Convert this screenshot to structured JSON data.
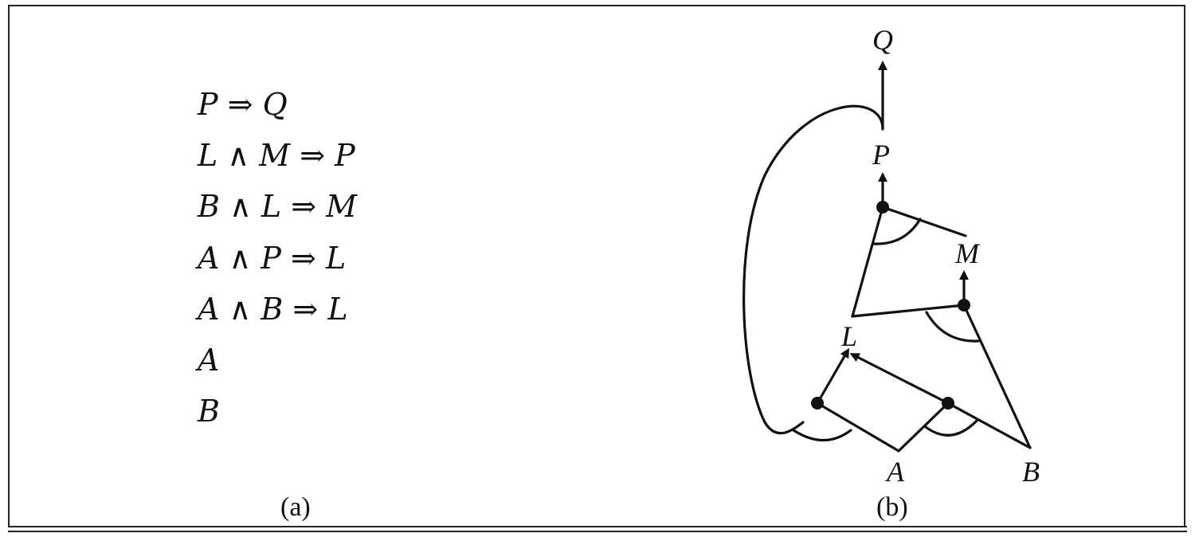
{
  "rules": [
    "P ⇒ Q",
    "L ∧ M ⇒ P",
    "B ∧ L ⇒ M",
    "A ∧ P ⇒ L",
    "A ∧ B ⇒ L",
    "A",
    "B"
  ],
  "captions": {
    "a": "(a)",
    "b": "(b)"
  },
  "graph_nodes": {
    "Q": "Q",
    "P": "P",
    "M": "M",
    "L": "L",
    "A": "A",
    "B": "B"
  }
}
